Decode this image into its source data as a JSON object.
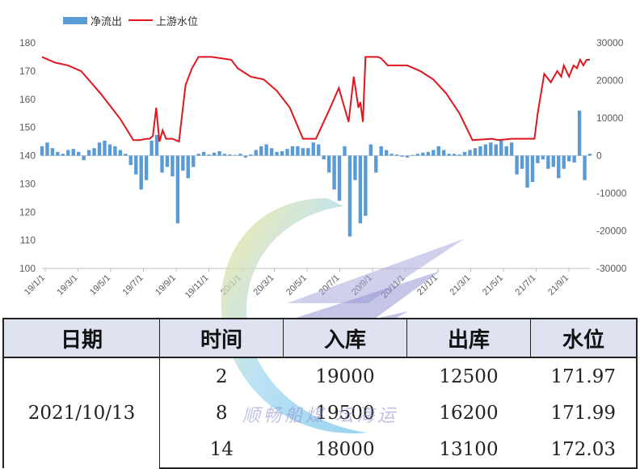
{
  "chart_data": {
    "type": "bar+line",
    "legend": [
      {
        "label": "净流出",
        "color": "#5b9bd5",
        "kind": "bar"
      },
      {
        "label": "上游水位",
        "color": "#e0161e",
        "kind": "line"
      }
    ],
    "y_left": {
      "min": 100,
      "max": 180,
      "ticks": [
        "100",
        "110",
        "120",
        "130",
        "140",
        "150",
        "160",
        "170",
        "180"
      ]
    },
    "y_right": {
      "min": -30000,
      "max": 30000,
      "ticks": [
        "-30000",
        "-20000",
        "-10000",
        "0",
        "10000",
        "20000",
        "30000"
      ]
    },
    "x_labels": [
      "19/1/1",
      "19/3/1",
      "19/5/1",
      "19/7/1",
      "19/9/1",
      "19/11/1",
      "20/1/1",
      "20/3/1",
      "20/5/1",
      "20/7/1",
      "20/9/1",
      "20/11/1",
      "21/1/1",
      "21/3/1",
      "21/5/1",
      "21/7/1",
      "21/9/1"
    ],
    "water_level_series": {
      "name": "上游水位",
      "x": [
        0,
        20,
        40,
        60,
        90,
        120,
        140,
        150,
        160,
        165,
        170,
        175,
        180,
        185,
        190,
        200,
        210,
        220,
        230,
        240,
        260,
        290,
        300,
        320,
        340,
        360,
        380,
        400,
        420,
        440,
        455,
        460,
        470,
        478,
        485,
        488,
        492,
        496,
        500,
        505,
        510,
        515,
        520,
        530,
        540,
        560,
        580,
        600,
        620,
        640,
        660,
        690,
        700,
        720,
        730,
        740,
        750,
        755,
        760,
        770,
        780,
        790,
        796,
        800,
        808,
        815,
        820,
        825,
        830,
        835,
        840
      ],
      "y": [
        175,
        173,
        172,
        170,
        162,
        153,
        145.5,
        145.5,
        146,
        146,
        147,
        157,
        145,
        149,
        146,
        146,
        145,
        165,
        171,
        175,
        175,
        174,
        171,
        168,
        167,
        163,
        157,
        146,
        146,
        156,
        164,
        160,
        152,
        168,
        157,
        159,
        152,
        175,
        175,
        175,
        175,
        175,
        174.5,
        172,
        172,
        172,
        170,
        167,
        162,
        155,
        145.5,
        146,
        145.5,
        146,
        146,
        146,
        146,
        146,
        155,
        169,
        166,
        170,
        168,
        172,
        168,
        172,
        171,
        174,
        172,
        174,
        174
      ]
    },
    "net_outflow_series": {
      "name": "净流出",
      "x": [
        0,
        8,
        16,
        24,
        32,
        40,
        48,
        56,
        64,
        72,
        80,
        88,
        96,
        104,
        112,
        120,
        128,
        136,
        144,
        152,
        160,
        168,
        176,
        184,
        192,
        200,
        208,
        216,
        224,
        232,
        240,
        248,
        256,
        264,
        272,
        280,
        288,
        296,
        304,
        312,
        320,
        328,
        336,
        344,
        352,
        360,
        368,
        376,
        384,
        392,
        400,
        408,
        416,
        424,
        432,
        440,
        448,
        456,
        464,
        472,
        480,
        488,
        496,
        504,
        512,
        520,
        528,
        536,
        544,
        552,
        560,
        568,
        576,
        584,
        592,
        600,
        608,
        616,
        624,
        632,
        640,
        648,
        656,
        664,
        672,
        680,
        688,
        696,
        704,
        712,
        720,
        728,
        736,
        744,
        752,
        760,
        768,
        776,
        784,
        792,
        800,
        808,
        816,
        824,
        832,
        840
      ],
      "values": [
        2500,
        3500,
        2000,
        1000,
        500,
        1500,
        1800,
        1000,
        -1200,
        1500,
        2000,
        3500,
        4000,
        3000,
        2500,
        1500,
        500,
        -2500,
        -5000,
        -9000,
        -6500,
        4000,
        5500,
        -4500,
        -3000,
        -5500,
        -18000,
        -4000,
        -6000,
        -3000,
        500,
        1000,
        300,
        800,
        1200,
        500,
        300,
        200,
        500,
        -500,
        300,
        1500,
        2500,
        3000,
        2000,
        1000,
        1200,
        1800,
        2500,
        2500,
        2000,
        2000,
        3500,
        3000,
        -1000,
        -4500,
        -9000,
        -12000,
        2500,
        -21500,
        -6500,
        -18000,
        -16000,
        3000,
        -4500,
        2500,
        1500,
        500,
        300,
        -300,
        -500,
        200,
        500,
        800,
        1000,
        1500,
        2500,
        1500,
        500,
        500,
        300,
        1000,
        1500,
        2000,
        2500,
        3000,
        3500,
        3000,
        4000,
        2500,
        3500,
        -5000,
        -3500,
        -8500,
        -7000,
        -2000,
        -1000,
        -3500,
        -3000,
        -6000,
        -3500,
        -1500,
        -1800,
        12000,
        -6500,
        500
      ]
    }
  },
  "table": {
    "headers": [
      "日期",
      "时间",
      "入库",
      "出库",
      "水位"
    ],
    "date": "2021/10/13",
    "rows": [
      {
        "time": "2",
        "inflow": "19000",
        "outflow": "12500",
        "level": "171.97"
      },
      {
        "time": "8",
        "inflow": "19500",
        "outflow": "16200",
        "level": "171.99"
      },
      {
        "time": "14",
        "inflow": "18000",
        "outflow": "13100",
        "level": "172.03"
      }
    ]
  },
  "watermark": {
    "text": "顺畅船煤  坛海运"
  }
}
